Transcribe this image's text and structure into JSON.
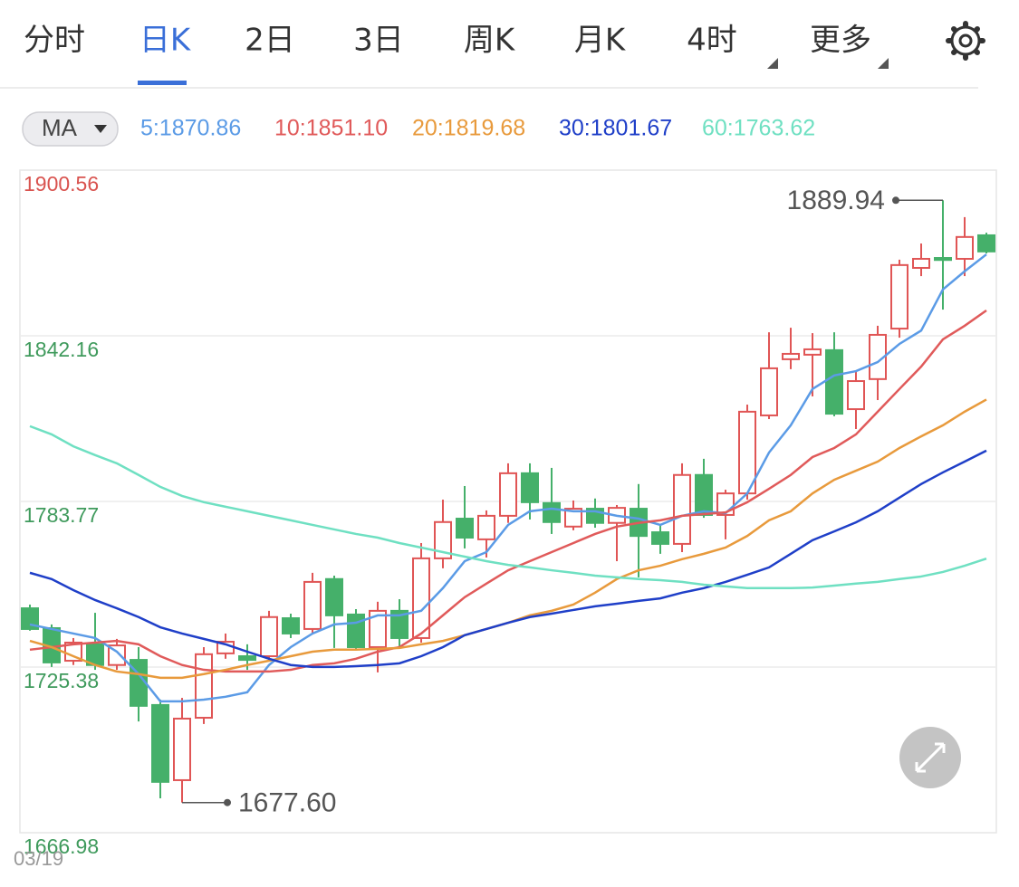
{
  "tabs": {
    "items": [
      "分时",
      "日K",
      "2日",
      "3日",
      "周K",
      "月K",
      "4时",
      "更多"
    ],
    "active": 1
  },
  "indicator": "MA",
  "chart_data": {
    "type": "candlestick",
    "categories": [
      "03/19",
      null,
      null,
      null,
      null,
      null,
      null,
      null,
      null,
      null,
      null,
      null,
      null,
      null,
      null,
      null,
      null,
      null,
      null,
      null,
      null,
      null,
      null,
      null,
      null,
      null,
      null,
      null,
      null,
      null,
      null,
      null,
      null,
      null,
      null,
      null,
      null,
      null,
      null,
      null,
      null,
      null,
      null,
      null,
      null
    ],
    "open": [
      1746.1,
      1739.1,
      1727.6,
      1733.4,
      1726.1,
      1727.9,
      1712.0,
      1685.5,
      1707.5,
      1730.2,
      1729.2,
      1729.2,
      1742.6,
      1738.8,
      1756.4,
      1743.9,
      1732.4,
      1745.2,
      1735.6,
      1763.7,
      1777.7,
      1770.4,
      1778.7,
      1793.7,
      1783.2,
      1774.9,
      1781.2,
      1776.2,
      1781.2,
      1772.9,
      1768.8,
      1793.1,
      1779.0,
      1786.6,
      1814.1,
      1833.9,
      1835.5,
      1837.1,
      1816.3,
      1826.9,
      1844.7,
      1866.1,
      1869.6,
      1869.3,
      1877.6
    ],
    "high": [
      1747.4,
      1740.4,
      1735.6,
      1744.5,
      1735.3,
      1732.4,
      1713.9,
      1714.5,
      1732.4,
      1737.2,
      1733.4,
      1745.2,
      1744.2,
      1758.6,
      1757.6,
      1745.8,
      1748.4,
      1749.3,
      1769.1,
      1784.4,
      1789.2,
      1780.6,
      1797.2,
      1797.2,
      1795.6,
      1784.1,
      1784.8,
      1782.5,
      1789.9,
      1775.5,
      1797.2,
      1798.8,
      1787.9,
      1817.9,
      1843.4,
      1845.0,
      1843.1,
      1843.4,
      1829.7,
      1845.7,
      1869.0,
      1874.7,
      1889.94,
      1884.0,
      1878.5
    ],
    "low": [
      1738.2,
      1725.4,
      1726.1,
      1724.4,
      1724.4,
      1706.2,
      1679.1,
      1677.6,
      1705.3,
      1728.3,
      1724.4,
      1727.6,
      1735.6,
      1737.2,
      1732.1,
      1731.5,
      1723.5,
      1731.8,
      1734.0,
      1760.2,
      1767.2,
      1764.0,
      1776.2,
      1777.4,
      1772.3,
      1773.6,
      1774.5,
      1762.7,
      1757.0,
      1765.3,
      1765.9,
      1778.0,
      1770.4,
      1784.4,
      1812.8,
      1830.4,
      1820.8,
      1813.8,
      1809.3,
      1819.5,
      1841.5,
      1863.2,
      1851.4,
      1863.2,
      1871.2
    ],
    "close": [
      1738.8,
      1727.0,
      1734.0,
      1726.1,
      1733.0,
      1711.7,
      1684.9,
      1707.2,
      1729.9,
      1734.3,
      1727.9,
      1743.0,
      1737.2,
      1755.4,
      1743.6,
      1732.4,
      1745.2,
      1735.6,
      1763.7,
      1776.5,
      1771.0,
      1778.7,
      1793.7,
      1783.5,
      1776.5,
      1781.2,
      1776.2,
      1781.5,
      1771.6,
      1768.8,
      1793.1,
      1779.0,
      1786.6,
      1815.4,
      1830.7,
      1835.8,
      1837.4,
      1814.7,
      1826.2,
      1842.5,
      1867.1,
      1869.3,
      1868.9,
      1877.0,
      1871.9
    ],
    "up_color": "#e05555",
    "down_color": "#45b06a",
    "series": [
      {
        "name": "5:1870.86",
        "color": "#5b9be6",
        "values": [
          1740.4,
          1738.8,
          1737.2,
          1735.6,
          1730.8,
          1722.9,
          1713.3,
          1713.3,
          1713.9,
          1714.9,
          1716.5,
          1726.1,
          1732.4,
          1737.2,
          1740.4,
          1741.0,
          1743.6,
          1743.6,
          1745.2,
          1753.2,
          1762.7,
          1765.9,
          1775.5,
          1780.3,
          1781.2,
          1780.3,
          1780.3,
          1778.7,
          1777.7,
          1775.5,
          1778.7,
          1780.3,
          1779.6,
          1786.6,
          1801.0,
          1810.6,
          1823.4,
          1828.2,
          1829.7,
          1832.9,
          1839.3,
          1844.0,
          1858.5,
          1864.9,
          1870.86
        ]
      },
      {
        "name": "10:1851.10",
        "color": "#e05a5a",
        "values": [
          1731.5,
          1732.4,
          1733.4,
          1734.0,
          1734.6,
          1733.4,
          1729.2,
          1726.1,
          1724.4,
          1723.8,
          1723.8,
          1723.8,
          1724.4,
          1726.1,
          1726.7,
          1728.3,
          1730.8,
          1732.4,
          1737.2,
          1743.6,
          1750.0,
          1754.8,
          1759.5,
          1762.7,
          1765.9,
          1769.1,
          1772.3,
          1774.9,
          1776.2,
          1777.1,
          1778.7,
          1779.3,
          1779.9,
          1783.5,
          1788.2,
          1793.1,
          1799.4,
          1802.6,
          1807.4,
          1815.4,
          1823.4,
          1831.3,
          1840.9,
          1845.7,
          1851.1
        ]
      },
      {
        "name": "20:1819.68",
        "color": "#e89a3c",
        "values": [
          1734.6,
          1732.4,
          1729.2,
          1726.1,
          1723.8,
          1722.9,
          1721.6,
          1721.6,
          1722.9,
          1724.4,
          1726.1,
          1727.6,
          1729.2,
          1730.8,
          1731.5,
          1731.5,
          1731.8,
          1732.1,
          1733.4,
          1734.6,
          1736.6,
          1738.8,
          1741.0,
          1743.6,
          1745.2,
          1747.4,
          1751.6,
          1756.4,
          1759.5,
          1761.1,
          1763.4,
          1765.3,
          1767.5,
          1771.6,
          1777.1,
          1780.3,
          1786.6,
          1791.4,
          1794.6,
          1797.8,
          1802.6,
          1806.7,
          1810.6,
          1815.4,
          1819.68
        ]
      },
      {
        "name": "30:1801.67",
        "color": "#1f3fc8",
        "values": [
          1758.6,
          1756.4,
          1752.5,
          1749.0,
          1746.1,
          1743.0,
          1739.4,
          1737.2,
          1735.3,
          1733.4,
          1730.8,
          1728.3,
          1726.1,
          1725.4,
          1725.4,
          1725.7,
          1726.1,
          1726.7,
          1729.2,
          1732.4,
          1736.6,
          1738.8,
          1741.0,
          1743.0,
          1744.2,
          1745.5,
          1746.8,
          1747.7,
          1748.7,
          1749.6,
          1751.6,
          1753.2,
          1755.4,
          1757.9,
          1760.5,
          1765.3,
          1770.1,
          1773.2,
          1776.4,
          1780.3,
          1785.1,
          1789.9,
          1794.0,
          1797.8,
          1801.67
        ]
      },
      {
        "name": "60:1763.62",
        "color": "#6fe0c2",
        "values": [
          1810.3,
          1807.4,
          1803.2,
          1800.1,
          1797.2,
          1793.1,
          1788.9,
          1785.7,
          1783.5,
          1781.9,
          1780.3,
          1778.7,
          1777.1,
          1775.5,
          1773.9,
          1772.3,
          1771.0,
          1769.1,
          1767.5,
          1765.9,
          1764.3,
          1762.7,
          1761.4,
          1760.5,
          1759.5,
          1758.6,
          1757.6,
          1757.0,
          1756.4,
          1756.0,
          1755.4,
          1754.4,
          1753.8,
          1753.2,
          1753.2,
          1753.2,
          1753.4,
          1754.1,
          1754.8,
          1755.4,
          1756.4,
          1757.3,
          1758.9,
          1761.1,
          1763.62
        ]
      }
    ],
    "ylim": [
      1666.98,
      1900.56
    ],
    "yticks": [
      1666.98,
      1725.38,
      1783.77,
      1842.16,
      1900.56
    ],
    "grid": true,
    "annotations": [
      {
        "value": 1889.94,
        "label": "1889.94"
      },
      {
        "value": 1677.6,
        "label": "1677.60"
      }
    ]
  }
}
